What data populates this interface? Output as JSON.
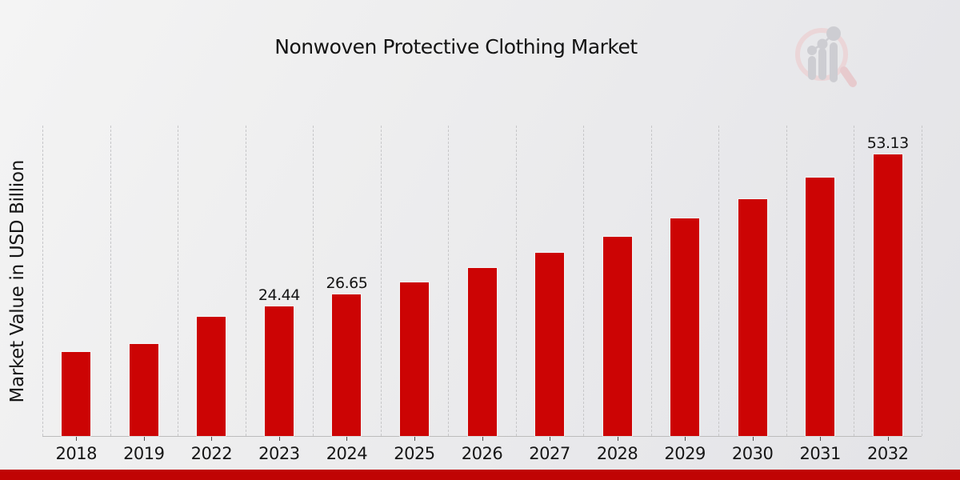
{
  "chart_data": {
    "type": "bar",
    "title": "Nonwoven Protective Clothing Market",
    "ylabel": "Market Value in USD Billion",
    "xlabel": "",
    "categories": [
      "2018",
      "2019",
      "2022",
      "2023",
      "2024",
      "2025",
      "2026",
      "2027",
      "2028",
      "2029",
      "2030",
      "2031",
      "2032"
    ],
    "values": [
      15.88,
      17.31,
      22.42,
      24.44,
      26.65,
      29.05,
      31.67,
      34.52,
      37.63,
      41.02,
      44.72,
      48.75,
      53.13
    ],
    "data_labels": [
      {
        "category": "2023",
        "text": "24.44"
      },
      {
        "category": "2024",
        "text": "26.65"
      },
      {
        "category": "2032",
        "text": "53.13"
      }
    ],
    "ylim": [
      0,
      58.7
    ],
    "grid": "vertical-dashed-category-boundaries",
    "legend_position": "none",
    "bar_color": "#cc0404"
  },
  "colors": {
    "accent_footer": "#c00404",
    "gridline": "#c7c7c9",
    "axis_line": "#bcbcbc",
    "text": "#161616"
  },
  "logo": {
    "ring_color": "#ecd3d5",
    "handle_color": "#e7c6c9",
    "figure_color": "#c9c9ce"
  }
}
